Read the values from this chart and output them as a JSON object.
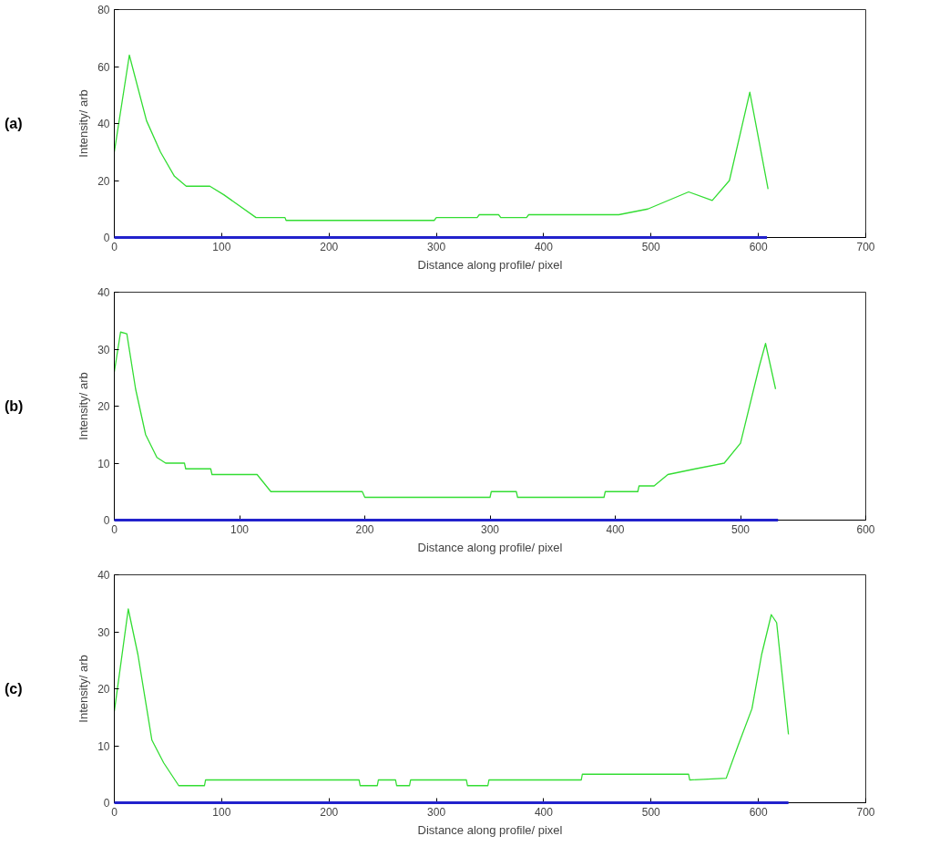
{
  "chart_data": [
    {
      "type": "line",
      "xlabel": "Distance along profile/ pixel",
      "ylabel": "Intensity/ arb",
      "annotations": [
        "(a)"
      ],
      "xlim": [
        0,
        700
      ],
      "ylim": [
        0,
        80
      ],
      "xticks": [
        0,
        100,
        200,
        300,
        400,
        500,
        600,
        700
      ],
      "yticks": [
        0,
        20,
        40,
        60,
        80
      ],
      "grid": false,
      "line_style": "solid",
      "marker": "none",
      "series": [
        {
          "color": "#33dd33",
          "x": [
            0,
            14,
            30,
            43,
            56,
            67,
            89,
            102,
            132,
            159,
            160,
            298,
            300,
            338,
            340,
            358,
            360,
            384,
            386,
            470,
            497,
            535,
            557,
            573,
            592,
            609
          ],
          "values": [
            30,
            64,
            41,
            30,
            21.5,
            18,
            18,
            15,
            7,
            7,
            6,
            6,
            7,
            7,
            8,
            8,
            7,
            7,
            8,
            8,
            10,
            16,
            13,
            20,
            51,
            17
          ]
        },
        {
          "color": "#2222cc",
          "x": [
            0,
            608
          ],
          "values": [
            0,
            0
          ]
        }
      ]
    },
    {
      "type": "line",
      "xlabel": "Distance along profile/ pixel",
      "ylabel": "Intensity/ arb",
      "annotations": [
        "(b)"
      ],
      "xlim": [
        0,
        600
      ],
      "ylim": [
        0,
        40
      ],
      "xticks": [
        0,
        100,
        200,
        300,
        400,
        500,
        600
      ],
      "yticks": [
        0,
        10,
        20,
        30,
        40
      ],
      "grid": false,
      "line_style": "solid",
      "marker": "none",
      "series": [
        {
          "color": "#33dd33",
          "x": [
            0,
            5,
            10,
            17,
            25,
            34,
            41,
            56,
            57,
            77,
            78,
            114,
            125,
            198,
            200,
            300,
            301,
            321,
            322,
            391,
            392,
            418,
            419,
            431,
            442,
            464,
            487,
            500,
            515,
            520,
            528
          ],
          "values": [
            26,
            33,
            32.7,
            23,
            15,
            11,
            10,
            10,
            9,
            9,
            8,
            8,
            5,
            5,
            4,
            4,
            5,
            5,
            4,
            4,
            5,
            5,
            6,
            6,
            8,
            9,
            10,
            13.5,
            27,
            31,
            23
          ]
        },
        {
          "color": "#2222cc",
          "x": [
            0,
            530
          ],
          "values": [
            0,
            0
          ]
        }
      ]
    },
    {
      "type": "line",
      "xlabel": "Distance along profile/ pixel",
      "ylabel": "Intensity/ arb",
      "annotations": [
        "(c)"
      ],
      "xlim": [
        0,
        700
      ],
      "ylim": [
        0,
        40
      ],
      "xticks": [
        0,
        100,
        200,
        300,
        400,
        500,
        600,
        700
      ],
      "yticks": [
        0,
        10,
        20,
        30,
        40
      ],
      "grid": false,
      "line_style": "solid",
      "marker": "none",
      "series": [
        {
          "color": "#33dd33",
          "x": [
            0,
            13,
            22,
            35,
            46,
            60,
            84,
            85,
            228,
            229,
            245,
            246,
            262,
            263,
            275,
            276,
            328,
            329,
            348,
            349,
            435,
            436,
            535,
            536,
            570,
            581,
            594,
            603,
            612,
            617,
            628
          ],
          "values": [
            16,
            34,
            26,
            11,
            7,
            3,
            3,
            4,
            4,
            3,
            3,
            4,
            4,
            3,
            3,
            4,
            4,
            3,
            3,
            4,
            4,
            5,
            5,
            4,
            4.3,
            10,
            16.5,
            26,
            33,
            31.6,
            12
          ]
        },
        {
          "color": "#2222cc",
          "x": [
            0,
            628
          ],
          "values": [
            0,
            0
          ]
        }
      ]
    }
  ]
}
